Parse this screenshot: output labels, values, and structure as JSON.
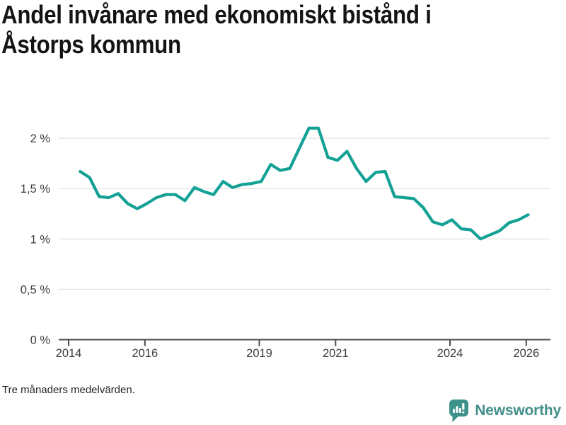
{
  "page": {
    "title": "Andel invånare med ekonomiskt bistånd i\nÅstorps kommun",
    "footnote": "Tre månaders medelvärden."
  },
  "brand": {
    "name": "Newsworthy",
    "icon": "newsworthy-speech-bubble-bar-chart-icon"
  },
  "colors": {
    "line": "#14a195",
    "grid": "#dcdcdc",
    "axis": "#4b4b4b",
    "tick_text": "#3c3c3c",
    "title": "#141414",
    "background": "#ffffff",
    "brand_teal": "#3f928c"
  },
  "chart_data": {
    "type": "line",
    "title": "Andel invånare med ekonomiskt bistånd i Åstorps kommun",
    "note": "Tre månaders medelvärden.",
    "unit": "%",
    "xlabel": "",
    "ylabel": "",
    "x_start": 2014.3,
    "x_step": 0.25,
    "values": [
      1.67,
      1.61,
      1.42,
      1.41,
      1.45,
      1.35,
      1.3,
      1.35,
      1.41,
      1.44,
      1.44,
      1.38,
      1.51,
      1.47,
      1.44,
      1.57,
      1.51,
      1.54,
      1.55,
      1.57,
      1.74,
      1.68,
      1.7,
      1.9,
      2.1,
      2.1,
      1.81,
      1.78,
      1.87,
      1.7,
      1.57,
      1.66,
      1.67,
      1.42,
      1.41,
      1.4,
      1.31,
      1.17,
      1.14,
      1.19,
      1.1,
      1.09,
      1.0,
      1.04,
      1.08,
      1.16,
      1.19,
      1.24
    ],
    "x_ticks": [
      2014,
      2016,
      2019,
      2021,
      2024,
      2026
    ],
    "y_ticks": [
      {
        "value": 2,
        "label": "2 %"
      },
      {
        "value": 1.5,
        "label": "1,5 %"
      },
      {
        "value": 1,
        "label": "1 %"
      },
      {
        "value": 0.5,
        "label": "0,5 %"
      },
      {
        "value": 0,
        "label": "0 %"
      }
    ],
    "ylim": [
      0,
      2.2
    ],
    "xlim": [
      2013.74,
      2026.63
    ],
    "grid": "horizontal-only",
    "legend": "none"
  }
}
